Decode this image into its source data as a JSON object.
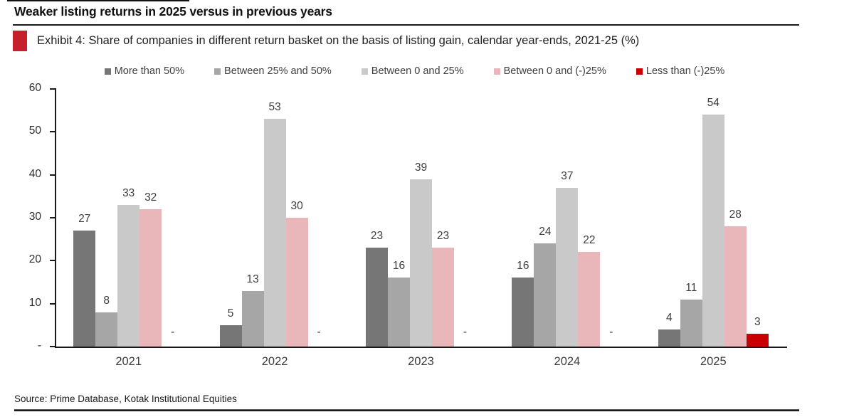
{
  "page": {
    "title": "Weaker listing returns in 2025 versus in previous years",
    "exhibit_title": "Exhibit 4: Share of companies in different return basket on the basis of listing gain, calendar year-ends, 2021-25 (%)",
    "source": "Source: Prime Database, Kotak Institutional Equities"
  },
  "colors": {
    "exhibit_marker_red": "#c5202c",
    "bar_dark_gray": "#767676",
    "bar_medium_gray": "#a6a6a6",
    "bar_light_gray": "#c9c9c9",
    "bar_pink": "#e9b7ba",
    "bar_red": "#c80000",
    "axis_black": "#1a1a1a",
    "label_gray": "#3d3d3d"
  },
  "chart_data": {
    "type": "bar",
    "title": "Share of companies in different return basket on the basis of listing gain, calendar year-ends, 2021-25 (%)",
    "categories": [
      "2021",
      "2022",
      "2023",
      "2024",
      "2025"
    ],
    "series": [
      {
        "name": "More than 50%",
        "color": "#767676",
        "values": [
          27,
          5,
          23,
          16,
          4
        ]
      },
      {
        "name": "Between 25% and 50%",
        "color": "#a6a6a6",
        "values": [
          8,
          13,
          16,
          24,
          11
        ]
      },
      {
        "name": "Between 0 and 25%",
        "color": "#c9c9c9",
        "values": [
          33,
          53,
          39,
          37,
          54
        ]
      },
      {
        "name": "Between 0 and (-)25%",
        "color": "#e9b7ba",
        "values": [
          32,
          30,
          23,
          22,
          28
        ]
      },
      {
        "name": "Less than (-)25%",
        "color": "#c80000",
        "values": [
          0,
          0,
          0,
          0,
          3
        ]
      }
    ],
    "zero_display": "-",
    "y_ticks": [
      60,
      50,
      40,
      30,
      20,
      10
    ],
    "y_zero_label": "-",
    "ylim": [
      0,
      60
    ],
    "xlabel": "",
    "ylabel": "",
    "grid": false,
    "legend_position": "top",
    "data_labels": true
  }
}
